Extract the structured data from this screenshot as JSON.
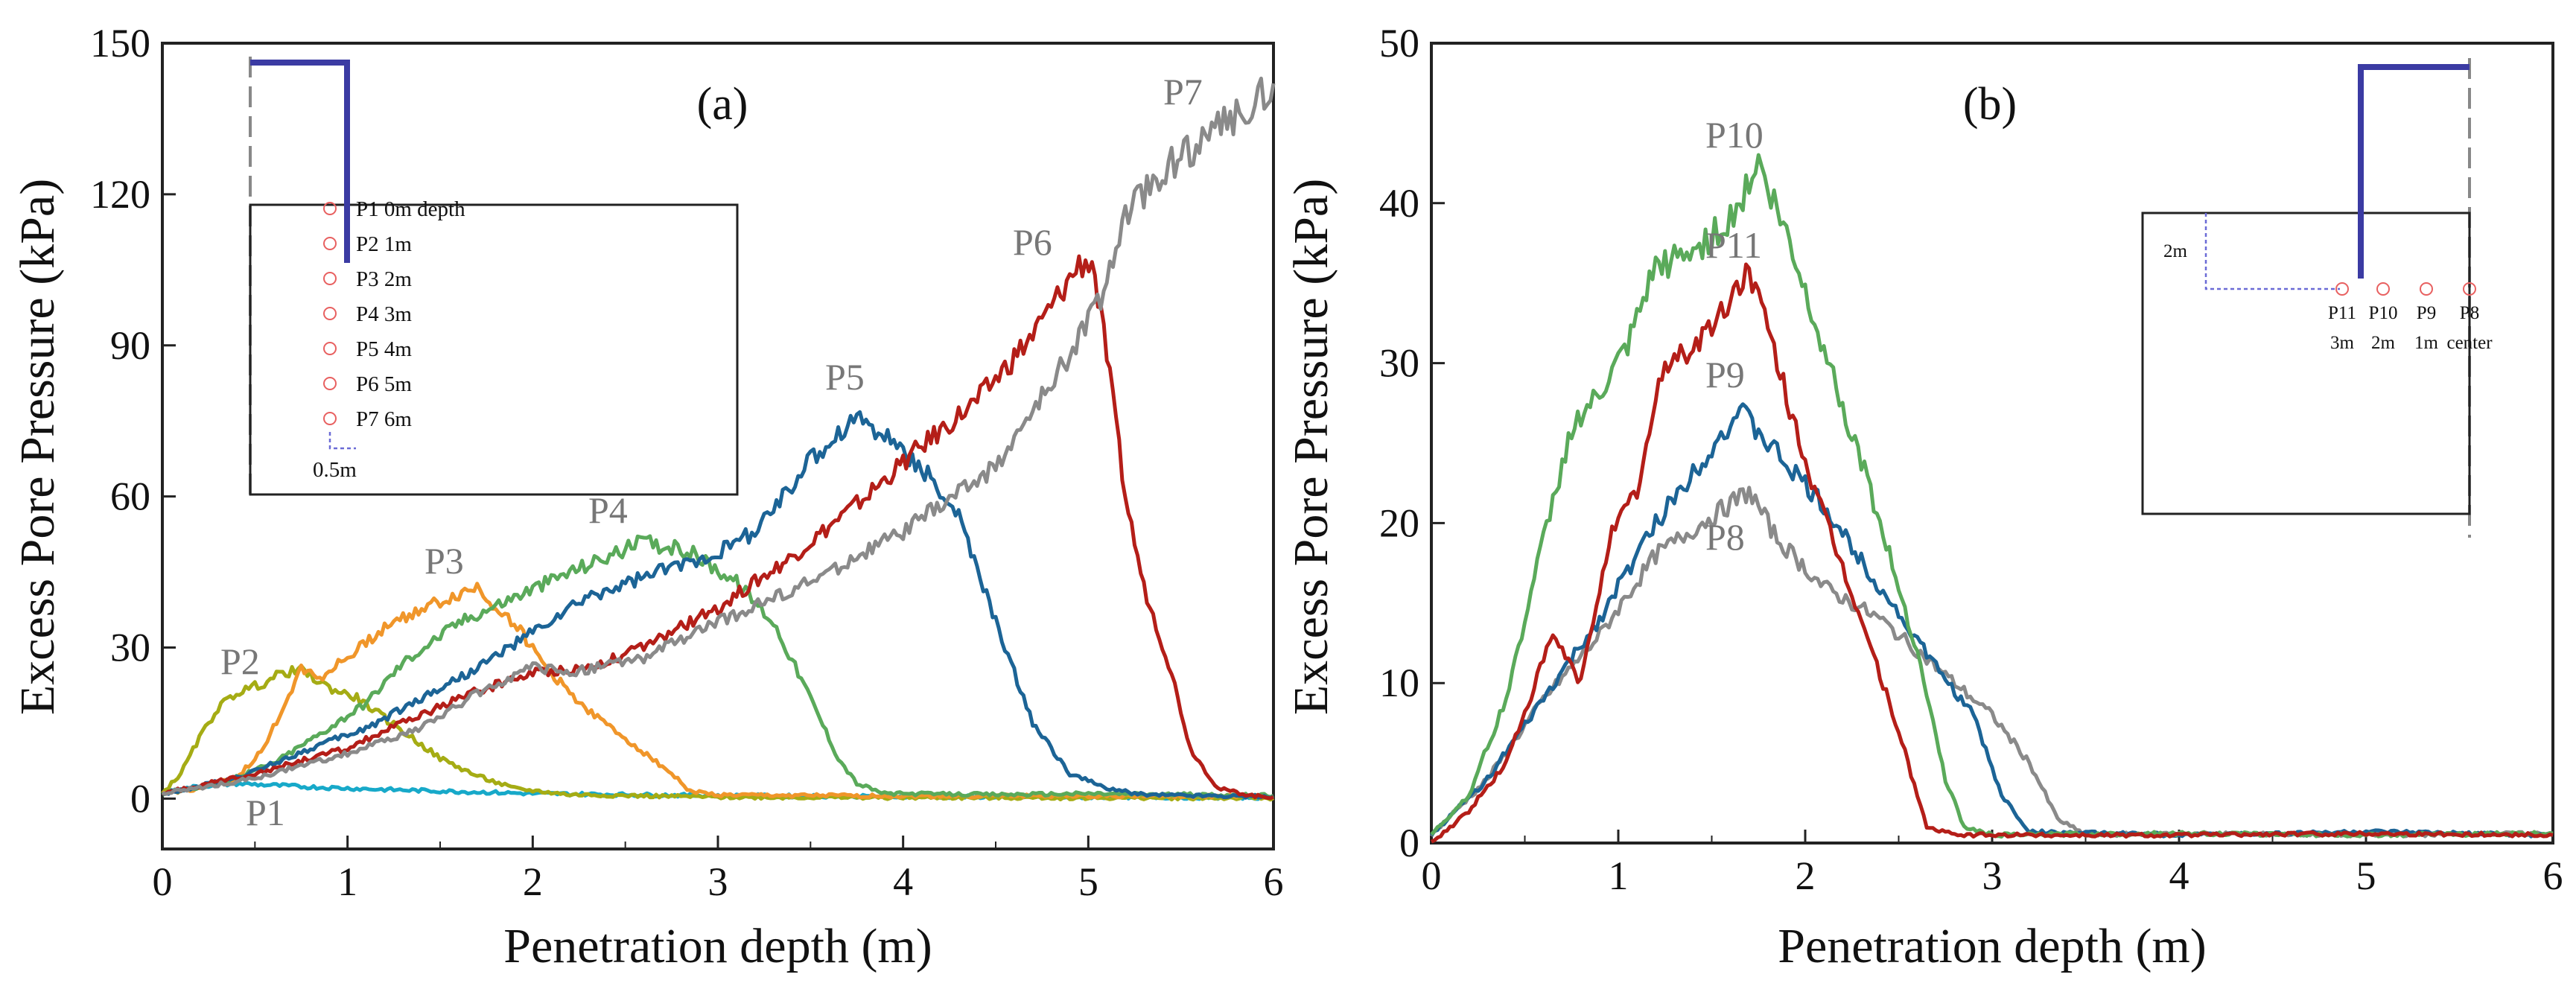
{
  "chart_data": [
    {
      "type": "line",
      "panel_label": "(a)",
      "xlabel": "Penetration depth (m)",
      "ylabel": "Excess Pore Pressure (kPa)",
      "xlim": [
        0,
        6
      ],
      "ylim": [
        -10,
        150
      ],
      "xticks": [
        "0",
        "1",
        "2",
        "3",
        "4",
        "5",
        "6"
      ],
      "yticks": [
        "0",
        "30",
        "60",
        "90",
        "120",
        "150"
      ],
      "grid": false,
      "series": [
        {
          "name": "P1",
          "color": "#17a9c9",
          "points": [
            [
              0,
              1
            ],
            [
              0.2,
              2.5
            ],
            [
              0.4,
              3
            ],
            [
              0.8,
              2.3
            ],
            [
              1.2,
              1.8
            ],
            [
              2,
              1
            ],
            [
              3,
              0.6
            ],
            [
              4,
              0.4
            ],
            [
              5,
              0.3
            ],
            [
              6,
              0.2
            ]
          ]
        },
        {
          "name": "P2",
          "color": "#a5ac14",
          "points": [
            [
              0,
              1
            ],
            [
              0.1,
              5
            ],
            [
              0.2,
              12
            ],
            [
              0.3,
              18
            ],
            [
              0.4,
              21
            ],
            [
              0.55,
              23
            ],
            [
              0.65,
              25
            ],
            [
              0.75,
              25.5
            ],
            [
              0.9,
              22
            ],
            [
              1.05,
              20
            ],
            [
              1.2,
              16
            ],
            [
              1.35,
              12
            ],
            [
              1.5,
              8
            ],
            [
              1.7,
              4.5
            ],
            [
              1.9,
              2
            ],
            [
              2.2,
              0.8
            ],
            [
              3,
              0.3
            ],
            [
              4,
              0.2
            ],
            [
              6,
              0.1
            ]
          ]
        },
        {
          "name": "P3",
          "color": "#f0962a",
          "points": [
            [
              0,
              1
            ],
            [
              0.2,
              2
            ],
            [
              0.4,
              4
            ],
            [
              0.55,
              10
            ],
            [
              0.7,
              22
            ],
            [
              0.75,
              26
            ],
            [
              0.85,
              24
            ],
            [
              1,
              28
            ],
            [
              1.2,
              34
            ],
            [
              1.35,
              37
            ],
            [
              1.5,
              39
            ],
            [
              1.7,
              42
            ],
            [
              1.8,
              38
            ],
            [
              1.9,
              35
            ],
            [
              2.05,
              27
            ],
            [
              2.2,
              21
            ],
            [
              2.35,
              16
            ],
            [
              2.5,
              12
            ],
            [
              2.75,
              5
            ],
            [
              2.85,
              1.5
            ],
            [
              3,
              0.7
            ],
            [
              4,
              0.5
            ],
            [
              5,
              0.6
            ],
            [
              6,
              0.4
            ]
          ]
        },
        {
          "name": "P4",
          "color": "#5aaa5a",
          "points": [
            [
              0,
              1
            ],
            [
              0.3,
              3
            ],
            [
              0.6,
              7
            ],
            [
              0.9,
              14
            ],
            [
              1.1,
              19
            ],
            [
              1.3,
              27
            ],
            [
              1.6,
              35
            ],
            [
              1.9,
              40
            ],
            [
              2.2,
              45
            ],
            [
              2.4,
              48
            ],
            [
              2.6,
              51
            ],
            [
              2.85,
              49
            ],
            [
              3.1,
              43
            ],
            [
              3.3,
              35
            ],
            [
              3.5,
              20
            ],
            [
              3.65,
              8
            ],
            [
              3.75,
              3
            ],
            [
              3.9,
              1
            ],
            [
              4.5,
              0.8
            ],
            [
              5,
              1
            ],
            [
              6,
              0.6
            ]
          ]
        },
        {
          "name": "P5",
          "color": "#1c6496",
          "points": [
            [
              0,
              1
            ],
            [
              0.4,
              4
            ],
            [
              0.8,
              10
            ],
            [
              1.1,
              14
            ],
            [
              1.4,
              20
            ],
            [
              1.7,
              26
            ],
            [
              2,
              33
            ],
            [
              2.3,
              40
            ],
            [
              2.6,
              44
            ],
            [
              3,
              49
            ],
            [
              3.2,
              53
            ],
            [
              3.5,
              67
            ],
            [
              3.75,
              76
            ],
            [
              3.9,
              72
            ],
            [
              4.1,
              66
            ],
            [
              4.3,
              56
            ],
            [
              4.5,
              35
            ],
            [
              4.7,
              15
            ],
            [
              4.9,
              5
            ],
            [
              5.1,
              2
            ],
            [
              5.3,
              0.8
            ],
            [
              6,
              0.4
            ]
          ]
        },
        {
          "name": "P6",
          "color": "#b41e18",
          "points": [
            [
              0,
              1
            ],
            [
              0.5,
              5
            ],
            [
              1,
              10
            ],
            [
              1.3,
              15
            ],
            [
              1.6,
              20
            ],
            [
              2,
              25
            ],
            [
              2.3,
              26
            ],
            [
              2.6,
              30
            ],
            [
              3,
              38
            ],
            [
              3.4,
              48
            ],
            [
              3.8,
              60
            ],
            [
              4.1,
              70
            ],
            [
              4.4,
              79
            ],
            [
              4.7,
              92
            ],
            [
              4.95,
              106
            ],
            [
              5.02,
              107
            ],
            [
              5.1,
              88
            ],
            [
              5.2,
              60
            ],
            [
              5.3,
              42
            ],
            [
              5.45,
              25
            ],
            [
              5.55,
              10
            ],
            [
              5.7,
              2
            ],
            [
              5.9,
              0.5
            ],
            [
              6,
              0.3
            ]
          ]
        },
        {
          "name": "P7",
          "color": "#8a8a8a",
          "points": [
            [
              0,
              1
            ],
            [
              0.5,
              4
            ],
            [
              1,
              9
            ],
            [
              1.4,
              14
            ],
            [
              1.7,
              21
            ],
            [
              2,
              26
            ],
            [
              2.2,
              25
            ],
            [
              2.6,
              28
            ],
            [
              3,
              35
            ],
            [
              3.5,
              43
            ],
            [
              4,
              53
            ],
            [
              4.5,
              66
            ],
            [
              4.8,
              82
            ],
            [
              5.05,
              98
            ],
            [
              5.2,
              115
            ],
            [
              5.4,
              125
            ],
            [
              5.6,
              130
            ],
            [
              5.8,
              136
            ],
            [
              6,
              142
            ]
          ]
        }
      ],
      "inset": {
        "labels": [
          "P1 0m depth",
          "P2 1m",
          "P3 2m",
          "P4 3m",
          "P5 4m",
          "P6 5m",
          "P7 6m"
        ],
        "offset_label": "0.5m"
      }
    },
    {
      "type": "line",
      "panel_label": "(b)",
      "xlabel": "Penetration depth (m)",
      "ylabel": "Excess Pore Pressure (kPa)",
      "xlim": [
        0,
        6
      ],
      "ylim": [
        0,
        50
      ],
      "xticks": [
        "0",
        "1",
        "2",
        "3",
        "4",
        "5",
        "6"
      ],
      "yticks": [
        "0",
        "10",
        "20",
        "30",
        "40",
        "50"
      ],
      "grid": false,
      "series": [
        {
          "name": "P8",
          "color": "#8a8a8a",
          "points": [
            [
              0,
              0.5
            ],
            [
              0.3,
              4
            ],
            [
              0.6,
              9
            ],
            [
              0.9,
              13
            ],
            [
              1.2,
              18
            ],
            [
              1.45,
              20
            ],
            [
              1.7,
              22
            ],
            [
              1.85,
              19
            ],
            [
              2.1,
              16
            ],
            [
              2.4,
              14
            ],
            [
              2.7,
              11
            ],
            [
              3,
              8
            ],
            [
              3.2,
              5
            ],
            [
              3.35,
              1.5
            ],
            [
              3.5,
              0.5
            ],
            [
              4,
              0.6
            ],
            [
              5,
              0.5
            ],
            [
              6,
              0.6
            ]
          ]
        },
        {
          "name": "P9",
          "color": "#1c6496",
          "points": [
            [
              0,
              0.5
            ],
            [
              0.3,
              4
            ],
            [
              0.6,
              9
            ],
            [
              0.9,
              14
            ],
            [
              1.2,
              20
            ],
            [
              1.45,
              24
            ],
            [
              1.65,
              27
            ],
            [
              1.8,
              25
            ],
            [
              2.1,
              21
            ],
            [
              2.4,
              16
            ],
            [
              2.7,
              11
            ],
            [
              2.9,
              8
            ],
            [
              3.05,
              3
            ],
            [
              3.2,
              0.7
            ],
            [
              4,
              0.5
            ],
            [
              5,
              0.7
            ],
            [
              6,
              0.5
            ]
          ]
        },
        {
          "name": "P10",
          "color": "#5aaa5a",
          "points": [
            [
              0,
              0.5
            ],
            [
              0.2,
              3
            ],
            [
              0.4,
              9
            ],
            [
              0.6,
              19
            ],
            [
              0.75,
              26
            ],
            [
              0.9,
              28
            ],
            [
              1.05,
              31
            ],
            [
              1.2,
              36
            ],
            [
              1.4,
              37
            ],
            [
              1.6,
              39
            ],
            [
              1.75,
              42.5
            ],
            [
              1.9,
              38
            ],
            [
              2.1,
              31
            ],
            [
              2.35,
              22
            ],
            [
              2.6,
              12
            ],
            [
              2.75,
              4
            ],
            [
              2.85,
              1
            ],
            [
              3,
              0.5
            ],
            [
              4,
              0.6
            ],
            [
              5,
              0.5
            ],
            [
              6,
              0.6
            ]
          ]
        },
        {
          "name": "P11",
          "color": "#b41e18",
          "points": [
            [
              0,
              0
            ],
            [
              0.2,
              2
            ],
            [
              0.4,
              5
            ],
            [
              0.65,
              13
            ],
            [
              0.8,
              10
            ],
            [
              0.95,
              19
            ],
            [
              1.1,
              22
            ],
            [
              1.25,
              30
            ],
            [
              1.4,
              31
            ],
            [
              1.55,
              33
            ],
            [
              1.7,
              36
            ],
            [
              1.85,
              30
            ],
            [
              2.05,
              22
            ],
            [
              2.3,
              14
            ],
            [
              2.5,
              7
            ],
            [
              2.6,
              3
            ],
            [
              2.65,
              1
            ],
            [
              2.8,
              0.5
            ],
            [
              4,
              0.5
            ],
            [
              5,
              0.6
            ],
            [
              6,
              0.5
            ]
          ]
        }
      ],
      "inset": {
        "labels": [
          "P11",
          "P10",
          "P9",
          "P8"
        ],
        "sublabels": [
          "3m",
          "2m",
          "1m",
          "center"
        ],
        "depth_label": "2m"
      }
    }
  ]
}
